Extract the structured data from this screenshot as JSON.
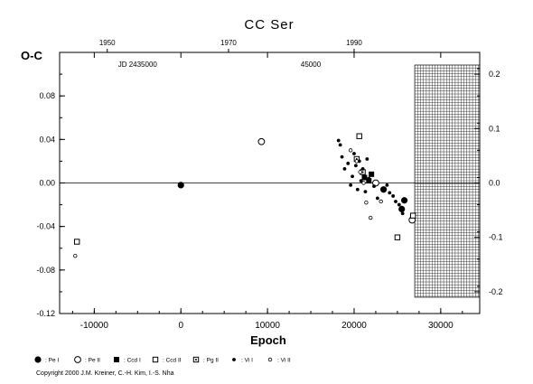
{
  "chart_data": {
    "type": "scatter",
    "title": "CC Ser",
    "ylabel": "O-C",
    "xlabel": "Epoch",
    "xlim": [
      -14000,
      34500
    ],
    "ylim": [
      -0.12,
      0.12
    ],
    "x_ticks": [
      -10000,
      0,
      10000,
      20000,
      30000
    ],
    "y_ticks": [
      -0.12,
      -0.08,
      -0.04,
      0.0,
      0.04,
      0.08
    ],
    "y_tick_labels": [
      "-0.12",
      "-0.08",
      "-0.04",
      "0.00",
      "0.04",
      "0.08"
    ],
    "right_axis": {
      "ylim": [
        -0.24,
        0.24
      ],
      "ticks": [
        -0.2,
        -0.1,
        0.0,
        0.1,
        0.2
      ],
      "tick_labels": [
        "-0.2",
        "-0.1",
        "0.0",
        "0.1",
        "0.2"
      ]
    },
    "top_axis": {
      "year_ticks": [
        1950,
        1970,
        1990
      ],
      "year_epochs": [
        -8500,
        5500,
        20000
      ],
      "jd_label": "JD 2435000",
      "jd_label_epoch": -5000,
      "jd_second": "45000",
      "jd_second_epoch": 15000
    },
    "zero_line": 0.0,
    "future_region": {
      "x_from": 27000,
      "x_to": 34500,
      "pattern": "grid"
    },
    "series": [
      {
        "name": "Pe I",
        "symbol": "filled-circle",
        "points": [
          [
            0,
            -0.002
          ],
          [
            23400,
            -0.006
          ],
          [
            25500,
            -0.024
          ],
          [
            25800,
            -0.016
          ]
        ]
      },
      {
        "name": "Pe II",
        "symbol": "open-circle",
        "points": [
          [
            9300,
            0.038
          ],
          [
            22500,
            0.0
          ],
          [
            26700,
            -0.034
          ]
        ]
      },
      {
        "name": "Ccd I",
        "symbol": "filled-square",
        "points": [
          [
            21200,
            0.005
          ],
          [
            21700,
            0.002
          ],
          [
            22000,
            0.008
          ]
        ]
      },
      {
        "name": "Ccd II",
        "symbol": "open-square",
        "points": [
          [
            -12000,
            -0.054
          ],
          [
            20600,
            0.043
          ],
          [
            25000,
            -0.05
          ],
          [
            26800,
            -0.03
          ]
        ]
      },
      {
        "name": "Pg II",
        "symbol": "dotted-square",
        "points": [
          [
            20300,
            0.022
          ],
          [
            21000,
            0.01
          ]
        ]
      },
      {
        "name": "Vi I",
        "symbol": "small-filled-circle",
        "points": [
          [
            18200,
            0.039
          ],
          [
            18400,
            0.035
          ],
          [
            18600,
            0.024
          ],
          [
            18900,
            0.013
          ],
          [
            19300,
            0.018
          ],
          [
            19600,
            -0.002
          ],
          [
            19800,
            0.006
          ],
          [
            20000,
            0.027
          ],
          [
            20200,
            0.016
          ],
          [
            20400,
            -0.006
          ],
          [
            20600,
            0.02
          ],
          [
            20800,
            0.002
          ],
          [
            21000,
            0.013
          ],
          [
            21300,
            -0.008
          ],
          [
            21500,
            0.022
          ],
          [
            21700,
            0.004
          ],
          [
            22300,
            -0.003
          ],
          [
            22700,
            -0.014
          ],
          [
            23800,
            -0.002
          ],
          [
            24100,
            -0.009
          ],
          [
            24500,
            -0.012
          ],
          [
            24800,
            -0.017
          ],
          [
            25200,
            -0.02
          ],
          [
            25600,
            -0.028
          ]
        ]
      },
      {
        "name": "Vi II",
        "symbol": "small-open-circle",
        "points": [
          [
            -12200,
            -0.067
          ],
          [
            19600,
            0.03
          ],
          [
            20300,
            0.02
          ],
          [
            20700,
            0.01
          ],
          [
            21100,
            0.0
          ],
          [
            21400,
            -0.018
          ],
          [
            21900,
            -0.032
          ],
          [
            23100,
            -0.017
          ]
        ]
      }
    ],
    "legend_labels": [
      ": Pe I",
      ": Pe II",
      ": Ccd I",
      ": Ccd II",
      ": Pg II",
      ": Vi I",
      ": Vi II"
    ],
    "legend_placement": "bottom"
  },
  "copyright": "Copyright 2000 J.M. Kreiner, C.-H. Kim, I.-S. Nha"
}
